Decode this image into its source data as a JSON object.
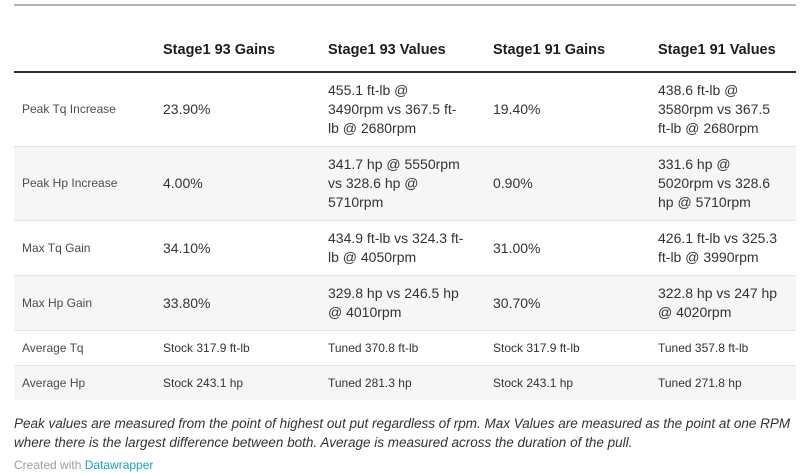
{
  "chart_data": {
    "type": "table",
    "columns": [
      "",
      "Stage1 93 Gains",
      "Stage1 93 Values",
      "Stage1 91 Gains",
      "Stage1 91 Values"
    ],
    "rows": [
      {
        "label": "Peak Tq Increase",
        "cells": [
          "23.90%",
          "455.1 ft-lb @ 3490rpm vs 367.5 ft-lb @ 2680rpm",
          "19.40%",
          "438.6 ft-lb @ 3580rpm vs 367.5 ft-lb @ 2680rpm"
        ]
      },
      {
        "label": "Peak Hp Increase",
        "cells": [
          "4.00%",
          "341.7 hp @ 5550rpm vs 328.6 hp @ 5710rpm",
          "0.90%",
          "331.6 hp @ 5020rpm vs 328.6 hp @ 5710rpm"
        ]
      },
      {
        "label": "Max Tq Gain",
        "cells": [
          "34.10%",
          "434.9 ft-lb vs 324.3 ft-lb @ 4050rpm",
          "31.00%",
          "426.1 ft-lb vs 325.3 ft-lb @ 3990rpm"
        ]
      },
      {
        "label": "Max Hp Gain",
        "cells": [
          "33.80%",
          "329.8 hp vs 246.5 hp @ 4010rpm",
          "30.70%",
          "322.8 hp vs 247 hp @ 4020rpm"
        ]
      },
      {
        "label": "Average Tq",
        "cells": [
          "Stock 317.9 ft-lb",
          "Tuned 370.8 ft-lb",
          "Stock 317.9 ft-lb",
          "Tuned 357.8 ft-lb"
        ]
      },
      {
        "label": "Average Hp",
        "cells": [
          "Stock 243.1 hp",
          "Tuned 281.3 hp",
          "Stock 243.1 hp",
          "Tuned 271.8 hp"
        ]
      }
    ]
  },
  "footer": {
    "note": "Peak values are measured from the point of highest out put regardless of rpm. Max Values are measured as the point at one RPM where there is the largest difference between both. Average is measured across the duration of the pull.",
    "credit_prefix": "Created with ",
    "credit_link": "Datawrapper"
  },
  "colors": {
    "header_border": "#2b2b2b",
    "row_stripe": "#f6f6f6",
    "separator": "#e2e2e2",
    "top_rule": "#b3b3b3",
    "link_blue": "#18a1cd",
    "text": "#333333",
    "credit_gray": "#9e9e9e"
  }
}
